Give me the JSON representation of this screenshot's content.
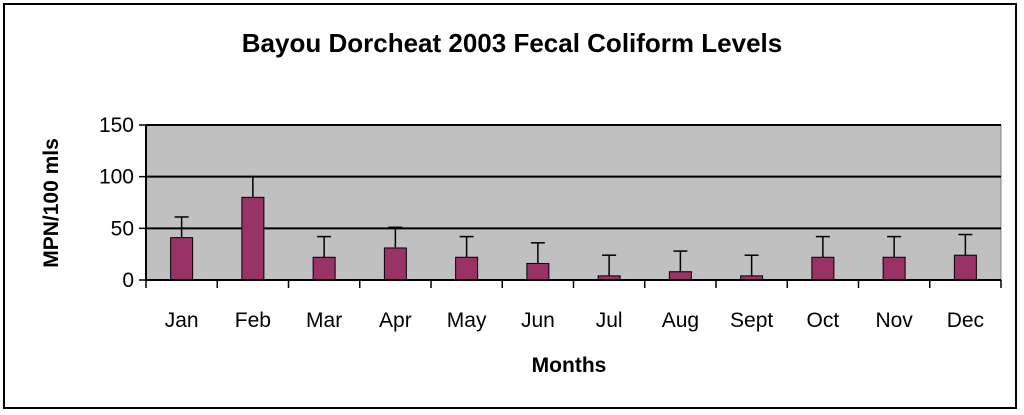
{
  "chart_data": {
    "type": "bar",
    "title": "Bayou Dorcheat 2003 Fecal Coliform Levels",
    "xlabel": "Months",
    "ylabel": "MPN/100 mls",
    "categories": [
      "Jan",
      "Feb",
      "Mar",
      "Apr",
      "May",
      "Jun",
      "Jul",
      "Aug",
      "Sept",
      "Oct",
      "Nov",
      "Dec"
    ],
    "values": [
      41,
      80,
      22,
      31,
      22,
      16,
      4,
      8,
      4,
      22,
      22,
      24
    ],
    "error_upper": [
      20,
      20,
      20,
      20,
      20,
      20,
      20,
      20,
      20,
      20,
      20,
      20
    ],
    "ylim": [
      0,
      150
    ],
    "yticks": [
      0,
      50,
      100,
      150
    ],
    "grid": true,
    "legend": "none",
    "colors": {
      "bar": "#993366",
      "plot_background": "#c0c0c0",
      "gridline": "#000000"
    }
  }
}
